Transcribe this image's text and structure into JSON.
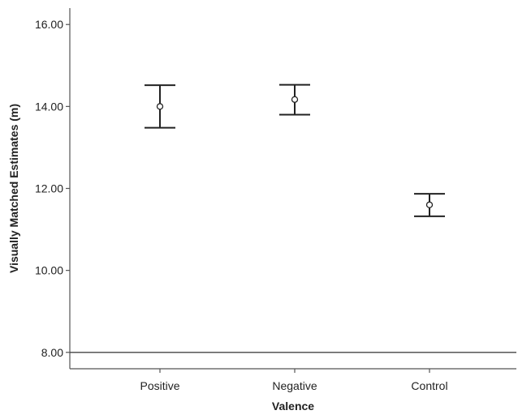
{
  "chart_data": {
    "type": "scatter",
    "subtype": "error-bar",
    "title": "",
    "xlabel": "Valence",
    "ylabel": "Visually Matched Estimates (m)",
    "categories": [
      "Positive",
      "Negative",
      "Control"
    ],
    "series": [
      {
        "values": [
          14.0,
          14.17,
          11.6
        ],
        "lower": [
          13.48,
          13.8,
          11.32
        ],
        "upper": [
          14.52,
          14.53,
          11.87
        ]
      }
    ],
    "ylim": [
      7.6,
      16.4
    ],
    "yticks": [
      8,
      10,
      12,
      14,
      16
    ],
    "ytick_labels": [
      "8.00",
      "10.00",
      "12.00",
      "14.00",
      "16.00"
    ],
    "reference_line_y": 8,
    "grid": false,
    "legend": "none",
    "colors": {
      "marks": "#222222",
      "axis": "#555555",
      "background": "#ffffff"
    }
  }
}
